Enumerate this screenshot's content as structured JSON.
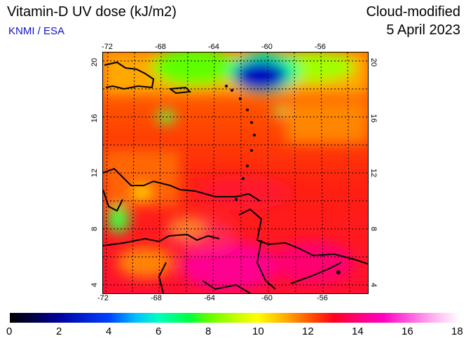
{
  "header": {
    "title": "Vitamin-D UV dose (kJ/m2)",
    "source": "KNMI / ESA",
    "product": "Cloud-modified",
    "date": "5 April 2023"
  },
  "map": {
    "lon_ticks": [
      "-72",
      "-68",
      "-64",
      "-60",
      "-56"
    ],
    "lat_ticks": [
      "20",
      "16",
      "12",
      "8",
      "4"
    ],
    "lon_range": [
      -73,
      -53
    ],
    "lat_range": [
      3,
      21
    ],
    "grid": true
  },
  "colorbar": {
    "labels": [
      "0",
      "2",
      "4",
      "6",
      "8",
      "10",
      "12",
      "14",
      "16",
      "18"
    ],
    "range": [
      0,
      18
    ]
  }
}
